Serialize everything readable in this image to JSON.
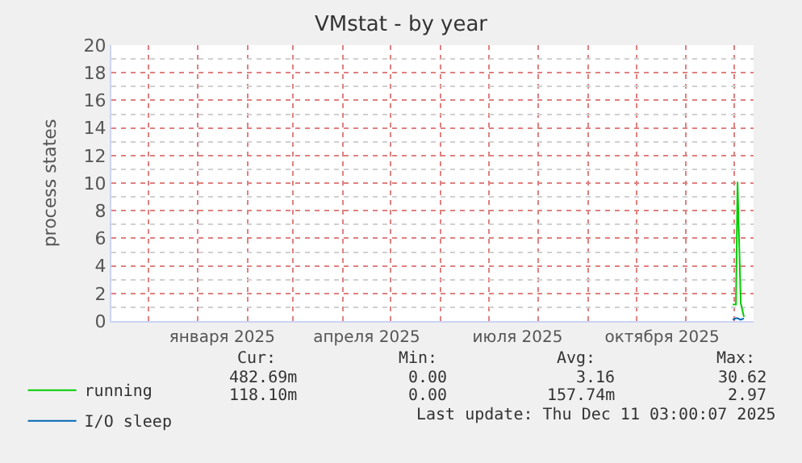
{
  "chart_data": {
    "type": "line",
    "title": "VMstat - by year",
    "ylabel": "process states",
    "xlim": [
      "2024-11-08",
      "2025-12-13"
    ],
    "xticks": [
      {
        "value": "2025-01-16",
        "label": "января 2025"
      },
      {
        "value": "2025-04-16",
        "label": "апреля 2025"
      },
      {
        "value": "2025-07-19",
        "label": "июля 2025"
      },
      {
        "value": "2025-10-17",
        "label": "октября 2025"
      }
    ],
    "ylim": [
      0,
      20
    ],
    "yticks": [
      0,
      2,
      4,
      6,
      8,
      10,
      12,
      14,
      16,
      18,
      20
    ],
    "series": [
      {
        "name": "running",
        "color": "#00cc00",
        "x": [
          "2025-11-30",
          "2025-12-02",
          "2025-12-03",
          "2025-12-05",
          "2025-12-07"
        ],
        "values": [
          1.2,
          1.2,
          10.1,
          1.3,
          0.3
        ]
      },
      {
        "name": "I/O sleep",
        "color": "#0066b3",
        "x": [
          "2025-11-30",
          "2025-12-02",
          "2025-12-03",
          "2025-12-05",
          "2025-12-07"
        ],
        "values": [
          0.1,
          0.2,
          0.2,
          0.1,
          0.2
        ]
      }
    ],
    "annotations": [
      "Cur:",
      "Min:",
      "Avg:",
      "Max:",
      "482.69m",
      "0.00",
      "3.16",
      "30.62",
      "118.10m",
      "0.00",
      "157.74m",
      "2.97",
      "Last update: Thu Dec 11 03:00:07 2025"
    ],
    "grid": true,
    "legend": "bottom left",
    "line_style": "solid",
    "marker": "none"
  }
}
